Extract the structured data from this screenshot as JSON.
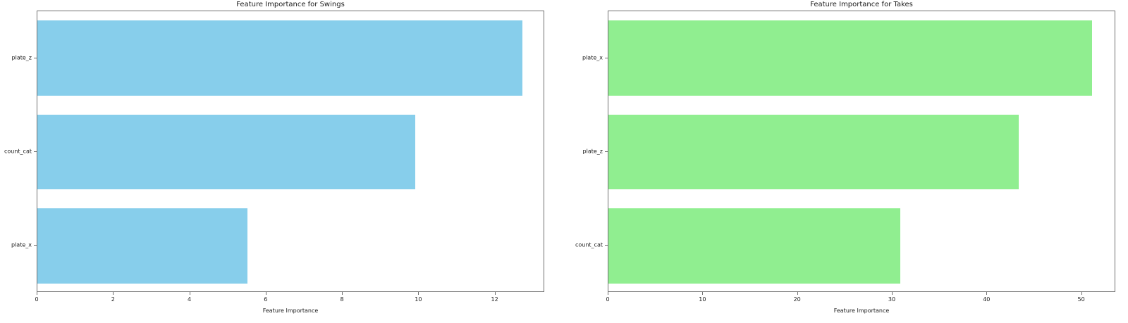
{
  "chart_data": [
    {
      "type": "bar",
      "orientation": "horizontal",
      "title": "Feature Importance for Swings",
      "xlabel": "Feature Importance",
      "ylabel": "",
      "categories": [
        "plate_z",
        "count_cat",
        "plate_x"
      ],
      "values": [
        12.7,
        9.9,
        5.5
      ],
      "bar_color": "#87CEEB",
      "bar_color_name": "skyblue",
      "xlim": [
        0,
        13.3
      ],
      "xticks": [
        0,
        2,
        4,
        6,
        8,
        10,
        12
      ],
      "grid": false,
      "legend": false
    },
    {
      "type": "bar",
      "orientation": "horizontal",
      "title": "Feature Importance for Takes",
      "xlabel": "Feature Importance",
      "ylabel": "",
      "categories": [
        "plate_x",
        "plate_z",
        "count_cat"
      ],
      "values": [
        51.1,
        43.3,
        30.8
      ],
      "bar_color": "#90EE90",
      "bar_color_name": "lightgreen",
      "xlim": [
        0,
        53.6
      ],
      "xticks": [
        0,
        10,
        20,
        30,
        40,
        50
      ],
      "grid": false,
      "legend": false
    }
  ],
  "colors": {
    "background": "#ffffff",
    "spine": "#707070",
    "text": "#1a1a1a",
    "swings_bar": "#87CEEB",
    "takes_bar": "#90EE90"
  }
}
